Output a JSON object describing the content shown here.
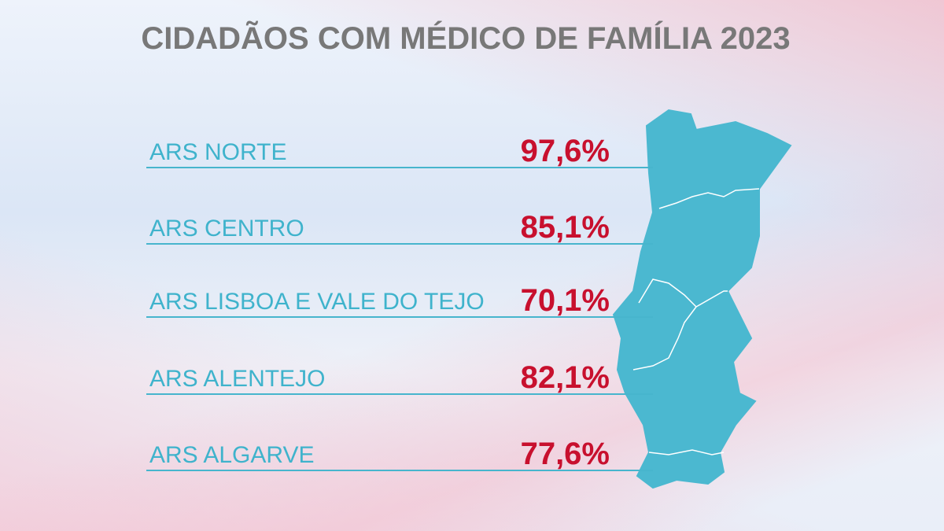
{
  "header": {
    "title": "CIDADÃOS COM MÉDICO DE FAMÍLIA 2023"
  },
  "table": {
    "rows": [
      [
        "ARS NORTE",
        "97,6%"
      ],
      [
        "ARS CENTRO",
        "85,1%"
      ],
      [
        "ARS LISBOA E VALE DO TEJO",
        "70,1%"
      ],
      [
        "ARS ALENTEJO",
        "82,1%"
      ],
      [
        "ARS ALGARVE",
        "77,6%"
      ]
    ]
  }
}
